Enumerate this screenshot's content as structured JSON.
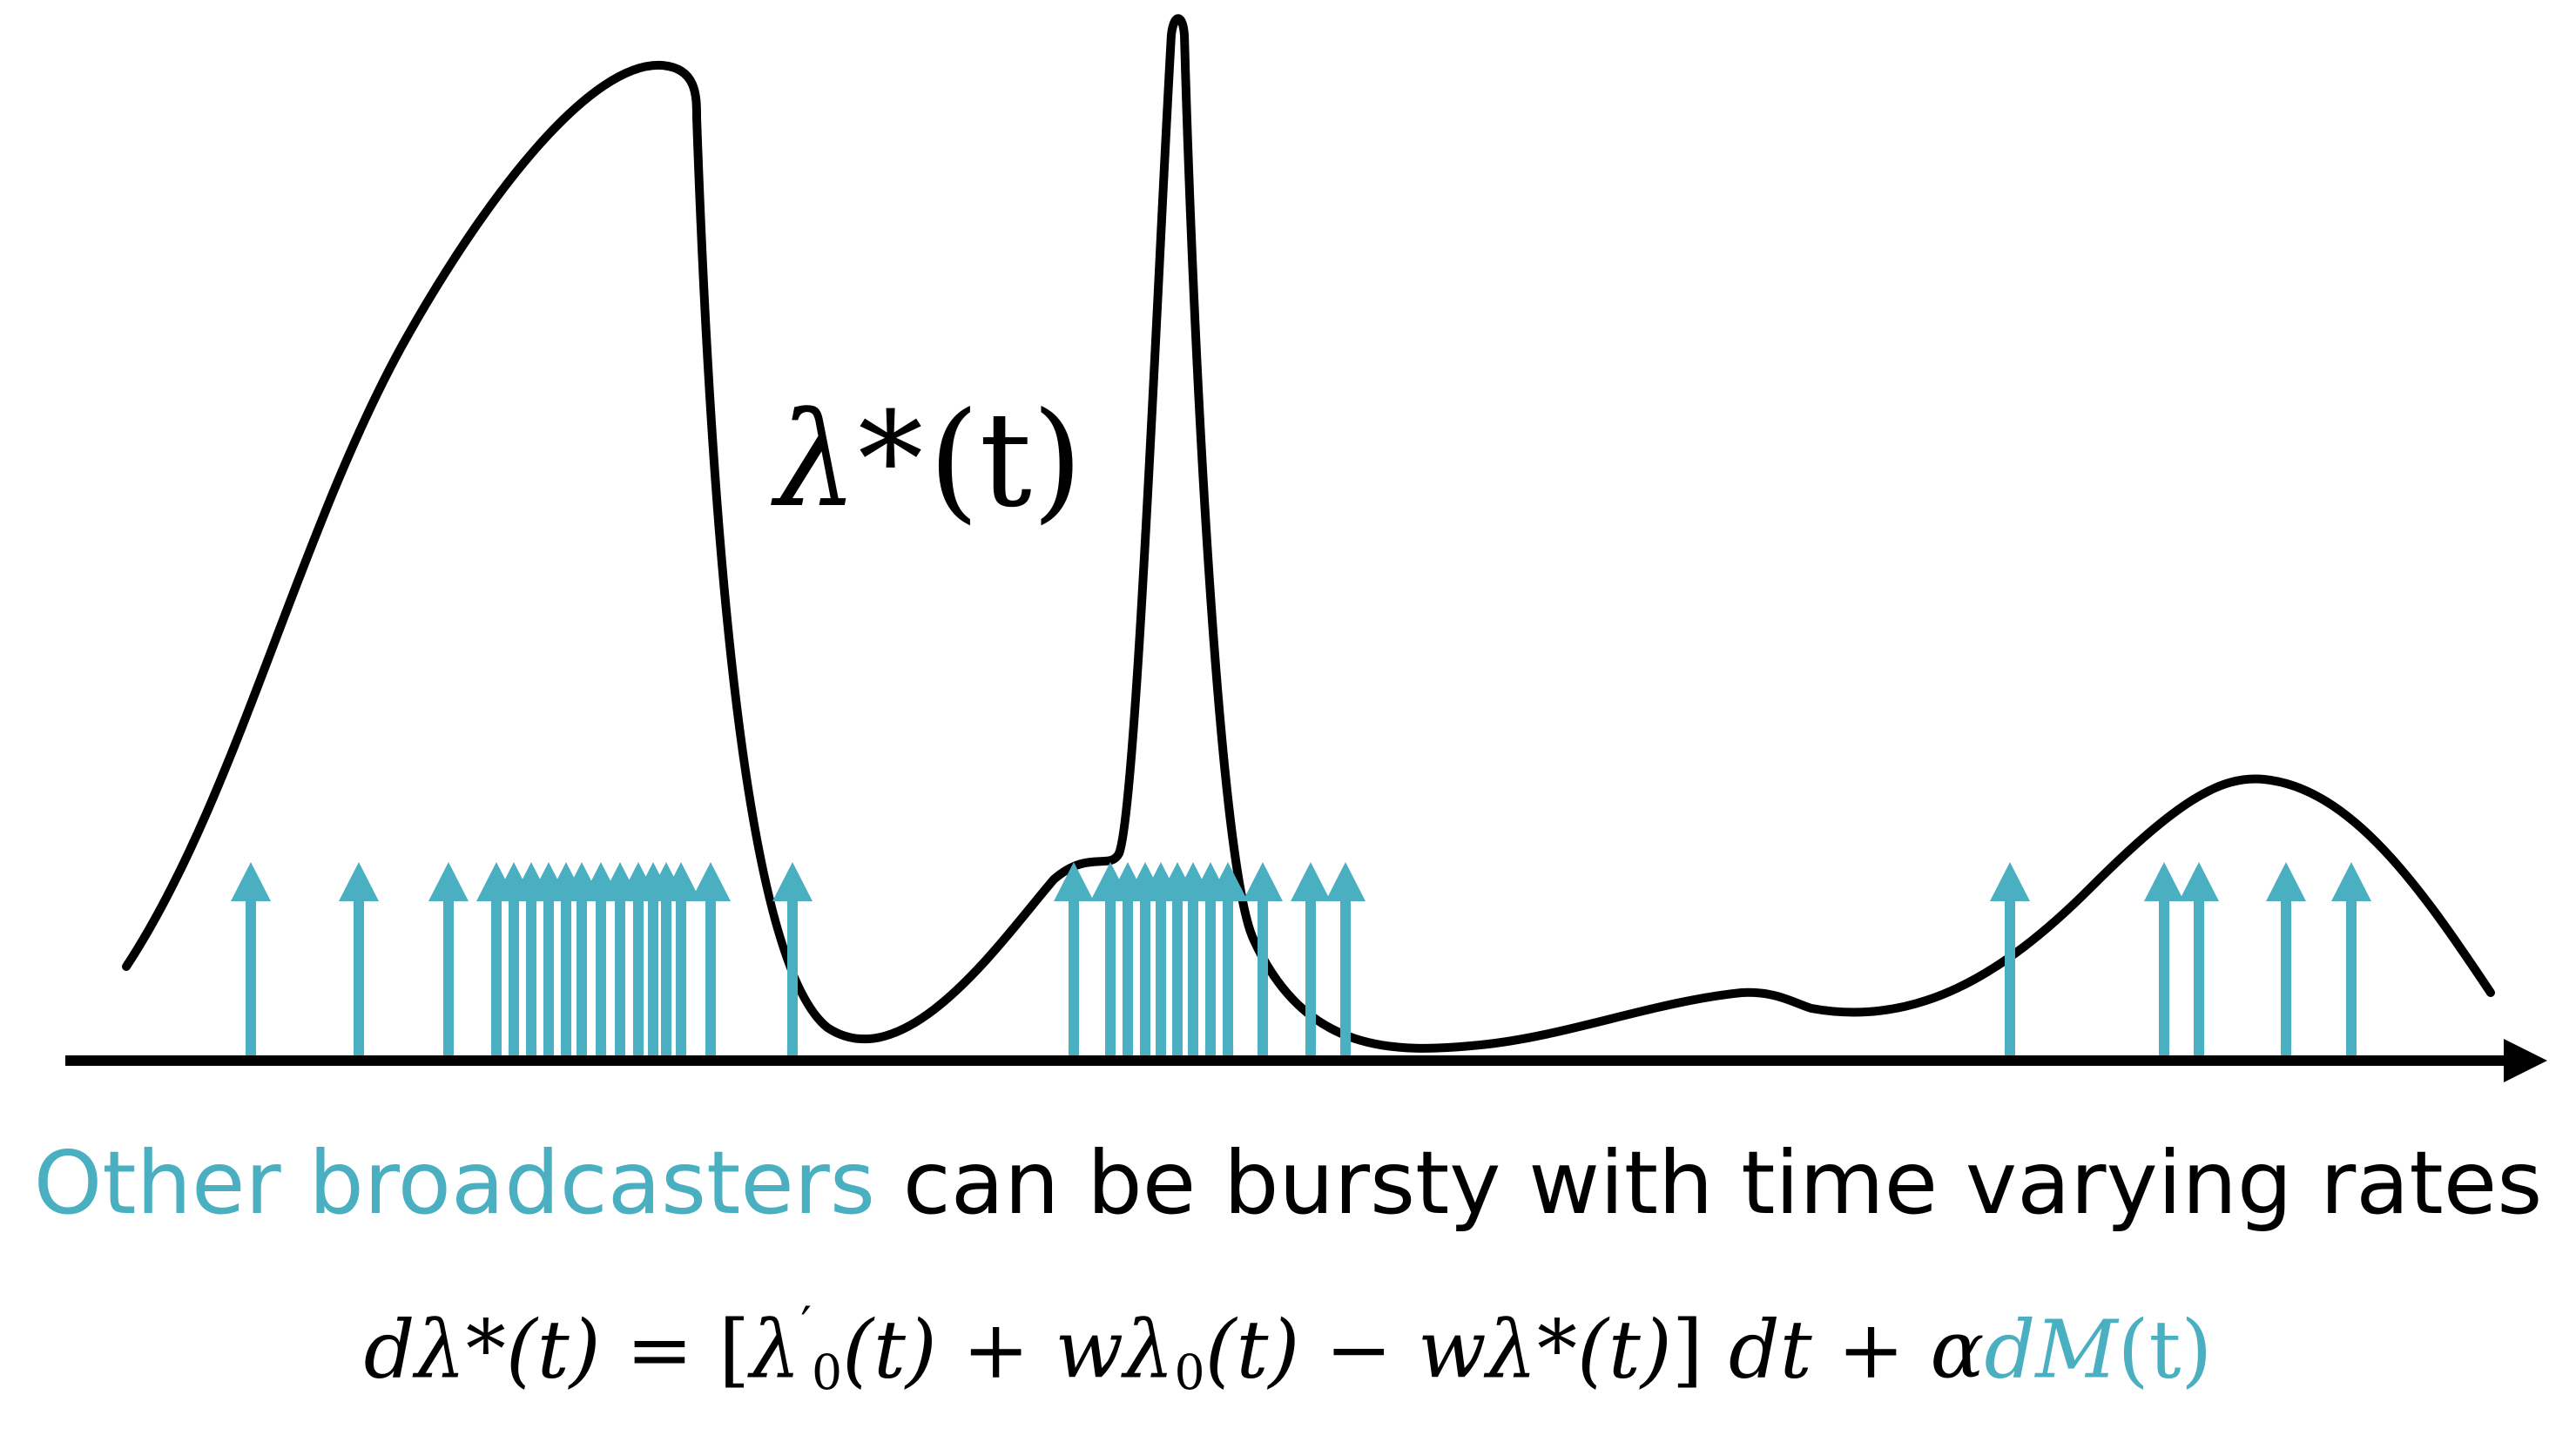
{
  "colors": {
    "accent": "#4aafc0",
    "curve": "#000000",
    "background": "#ffffff"
  },
  "curve_label": {
    "main": "λ*",
    "arg": "(t)"
  },
  "caption": {
    "highlight": "Other broadcasters",
    "rest": " can be bursty with time varying rates"
  },
  "equation": {
    "lhs": "dλ*(t) = ",
    "bracket_open": "[",
    "term1_base": "λ",
    "term1_sup": "′",
    "term1_sub": "0",
    "term1_arg": "(t) + ",
    "term2_w": "w",
    "term2_base": "λ",
    "term2_sub": "0",
    "term2_arg": "(t) − ",
    "term3": "wλ*(t)",
    "bracket_close": "]",
    "dt": " dt + α",
    "dM": "dM",
    "dM_arg": "(t)"
  },
  "events": {
    "count": 37
  }
}
